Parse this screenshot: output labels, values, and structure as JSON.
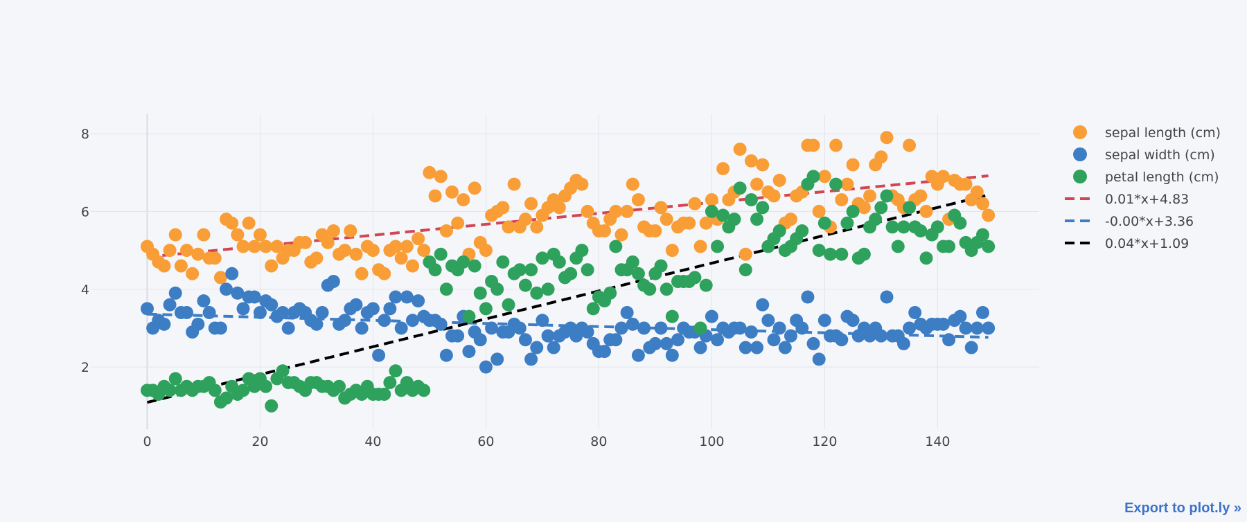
{
  "export_link": "Export to plot.ly »",
  "chart_data": {
    "type": "scatter",
    "title": "",
    "xlabel": "",
    "ylabel": "",
    "xlim": [
      -10,
      158
    ],
    "ylim": [
      0.4,
      8.5
    ],
    "x_ticks": [
      0,
      20,
      40,
      60,
      80,
      100,
      120,
      140
    ],
    "y_ticks": [
      2,
      4,
      6,
      8
    ],
    "grid": true,
    "legend_placement": "top-right",
    "marker_colors": {
      "sepal_length": "#f99d36",
      "sepal_width": "#3d7dc4",
      "petal_length": "#2ea25c"
    },
    "trend_colors": {
      "sepal_length": "#d24553",
      "sepal_width": "#3d7dc4",
      "petal_length": "#000000"
    },
    "series": [
      {
        "key": "sepal_length",
        "name": "sepal length (cm)",
        "values": [
          5.1,
          4.9,
          4.7,
          4.6,
          5.0,
          5.4,
          4.6,
          5.0,
          4.4,
          4.9,
          5.4,
          4.8,
          4.8,
          4.3,
          5.8,
          5.7,
          5.4,
          5.1,
          5.7,
          5.1,
          5.4,
          5.1,
          4.6,
          5.1,
          4.8,
          5.0,
          5.0,
          5.2,
          5.2,
          4.7,
          4.8,
          5.4,
          5.2,
          5.5,
          4.9,
          5.0,
          5.5,
          4.9,
          4.4,
          5.1,
          5.0,
          4.5,
          4.4,
          5.0,
          5.1,
          4.8,
          5.1,
          4.6,
          5.3,
          5.0,
          7.0,
          6.4,
          6.9,
          5.5,
          6.5,
          5.7,
          6.3,
          4.9,
          6.6,
          5.2,
          5.0,
          5.9,
          6.0,
          6.1,
          5.6,
          6.7,
          5.6,
          5.8,
          6.2,
          5.6,
          5.9,
          6.1,
          6.3,
          6.1,
          6.4,
          6.6,
          6.8,
          6.7,
          6.0,
          5.7,
          5.5,
          5.5,
          5.8,
          6.0,
          5.4,
          6.0,
          6.7,
          6.3,
          5.6,
          5.5,
          5.5,
          6.1,
          5.8,
          5.0,
          5.6,
          5.7,
          5.7,
          6.2,
          5.1,
          5.7,
          6.3,
          5.8,
          7.1,
          6.3,
          6.5,
          7.6,
          4.9,
          7.3,
          6.7,
          7.2,
          6.5,
          6.4,
          6.8,
          5.7,
          5.8,
          6.4,
          6.5,
          7.7,
          7.7,
          6.0,
          6.9,
          5.6,
          7.7,
          6.3,
          6.7,
          7.2,
          6.2,
          6.1,
          6.4,
          7.2,
          7.4,
          7.9,
          6.4,
          6.3,
          6.1,
          7.7,
          6.3,
          6.4,
          6.0,
          6.9,
          6.7,
          6.9,
          5.8,
          6.8,
          6.7,
          6.7,
          6.3,
          6.5,
          6.2,
          5.9
        ]
      },
      {
        "key": "sepal_width",
        "name": "sepal width (cm)",
        "values": [
          3.5,
          3.0,
          3.2,
          3.1,
          3.6,
          3.9,
          3.4,
          3.4,
          2.9,
          3.1,
          3.7,
          3.4,
          3.0,
          3.0,
          4.0,
          4.4,
          3.9,
          3.5,
          3.8,
          3.8,
          3.4,
          3.7,
          3.6,
          3.3,
          3.4,
          3.0,
          3.4,
          3.5,
          3.4,
          3.2,
          3.1,
          3.4,
          4.1,
          4.2,
          3.1,
          3.2,
          3.5,
          3.6,
          3.0,
          3.4,
          3.5,
          2.3,
          3.2,
          3.5,
          3.8,
          3.0,
          3.8,
          3.2,
          3.7,
          3.3,
          3.2,
          3.2,
          3.1,
          2.3,
          2.8,
          2.8,
          3.3,
          2.4,
          2.9,
          2.7,
          2.0,
          3.0,
          2.2,
          2.9,
          2.9,
          3.1,
          3.0,
          2.7,
          2.2,
          2.5,
          3.2,
          2.8,
          2.5,
          2.8,
          2.9,
          3.0,
          2.8,
          3.0,
          2.9,
          2.6,
          2.4,
          2.4,
          2.7,
          2.7,
          3.0,
          3.4,
          3.1,
          2.3,
          3.0,
          2.5,
          2.6,
          3.0,
          2.6,
          2.3,
          2.7,
          3.0,
          2.9,
          2.9,
          2.5,
          2.8,
          3.3,
          2.7,
          3.0,
          2.9,
          3.0,
          3.0,
          2.5,
          2.9,
          2.5,
          3.6,
          3.2,
          2.7,
          3.0,
          2.5,
          2.8,
          3.2,
          3.0,
          3.8,
          2.6,
          2.2,
          3.2,
          2.8,
          2.8,
          2.7,
          3.3,
          3.2,
          2.8,
          3.0,
          2.8,
          3.0,
          2.8,
          3.8,
          2.8,
          2.8,
          2.6,
          3.0,
          3.4,
          3.1,
          3.0,
          3.1,
          3.1,
          3.1,
          2.7,
          3.2,
          3.3,
          3.0,
          2.5,
          3.0,
          3.4,
          3.0
        ]
      },
      {
        "key": "petal_length",
        "name": "petal length (cm)",
        "values": [
          1.4,
          1.4,
          1.3,
          1.5,
          1.4,
          1.7,
          1.4,
          1.5,
          1.4,
          1.5,
          1.5,
          1.6,
          1.4,
          1.1,
          1.2,
          1.5,
          1.3,
          1.4,
          1.7,
          1.5,
          1.7,
          1.5,
          1.0,
          1.7,
          1.9,
          1.6,
          1.6,
          1.5,
          1.4,
          1.6,
          1.6,
          1.5,
          1.5,
          1.4,
          1.5,
          1.2,
          1.3,
          1.4,
          1.3,
          1.5,
          1.3,
          1.3,
          1.3,
          1.6,
          1.9,
          1.4,
          1.6,
          1.4,
          1.5,
          1.4,
          4.7,
          4.5,
          4.9,
          4.0,
          4.6,
          4.5,
          4.7,
          3.3,
          4.6,
          3.9,
          3.5,
          4.2,
          4.0,
          4.7,
          3.6,
          4.4,
          4.5,
          4.1,
          4.5,
          3.9,
          4.8,
          4.0,
          4.9,
          4.7,
          4.3,
          4.4,
          4.8,
          5.0,
          4.5,
          3.5,
          3.8,
          3.7,
          3.9,
          5.1,
          4.5,
          4.5,
          4.7,
          4.4,
          4.1,
          4.0,
          4.4,
          4.6,
          4.0,
          3.3,
          4.2,
          4.2,
          4.2,
          4.3,
          3.0,
          4.1,
          6.0,
          5.1,
          5.9,
          5.6,
          5.8,
          6.6,
          4.5,
          6.3,
          5.8,
          6.1,
          5.1,
          5.3,
          5.5,
          5.0,
          5.1,
          5.3,
          5.5,
          6.7,
          6.9,
          5.0,
          5.7,
          4.9,
          6.7,
          4.9,
          5.7,
          6.0,
          4.8,
          4.9,
          5.6,
          5.8,
          6.1,
          6.4,
          5.6,
          5.1,
          5.6,
          6.1,
          5.6,
          5.5,
          4.8,
          5.4,
          5.6,
          5.1,
          5.1,
          5.9,
          5.7,
          5.2,
          5.0,
          5.2,
          5.4,
          5.1
        ]
      }
    ],
    "trendlines": [
      {
        "key": "sepal_length",
        "name": "0.01*x+4.83",
        "slope": 0.014,
        "intercept": 4.83,
        "x_range": [
          0,
          149
        ]
      },
      {
        "key": "sepal_width",
        "name": "-0.00*x+3.36",
        "slope": -0.004,
        "intercept": 3.36,
        "x_range": [
          0,
          149
        ]
      },
      {
        "key": "petal_length",
        "name": "0.04*x+1.09",
        "slope": 0.0358,
        "intercept": 1.09,
        "x_range": [
          0,
          149
        ]
      }
    ]
  }
}
